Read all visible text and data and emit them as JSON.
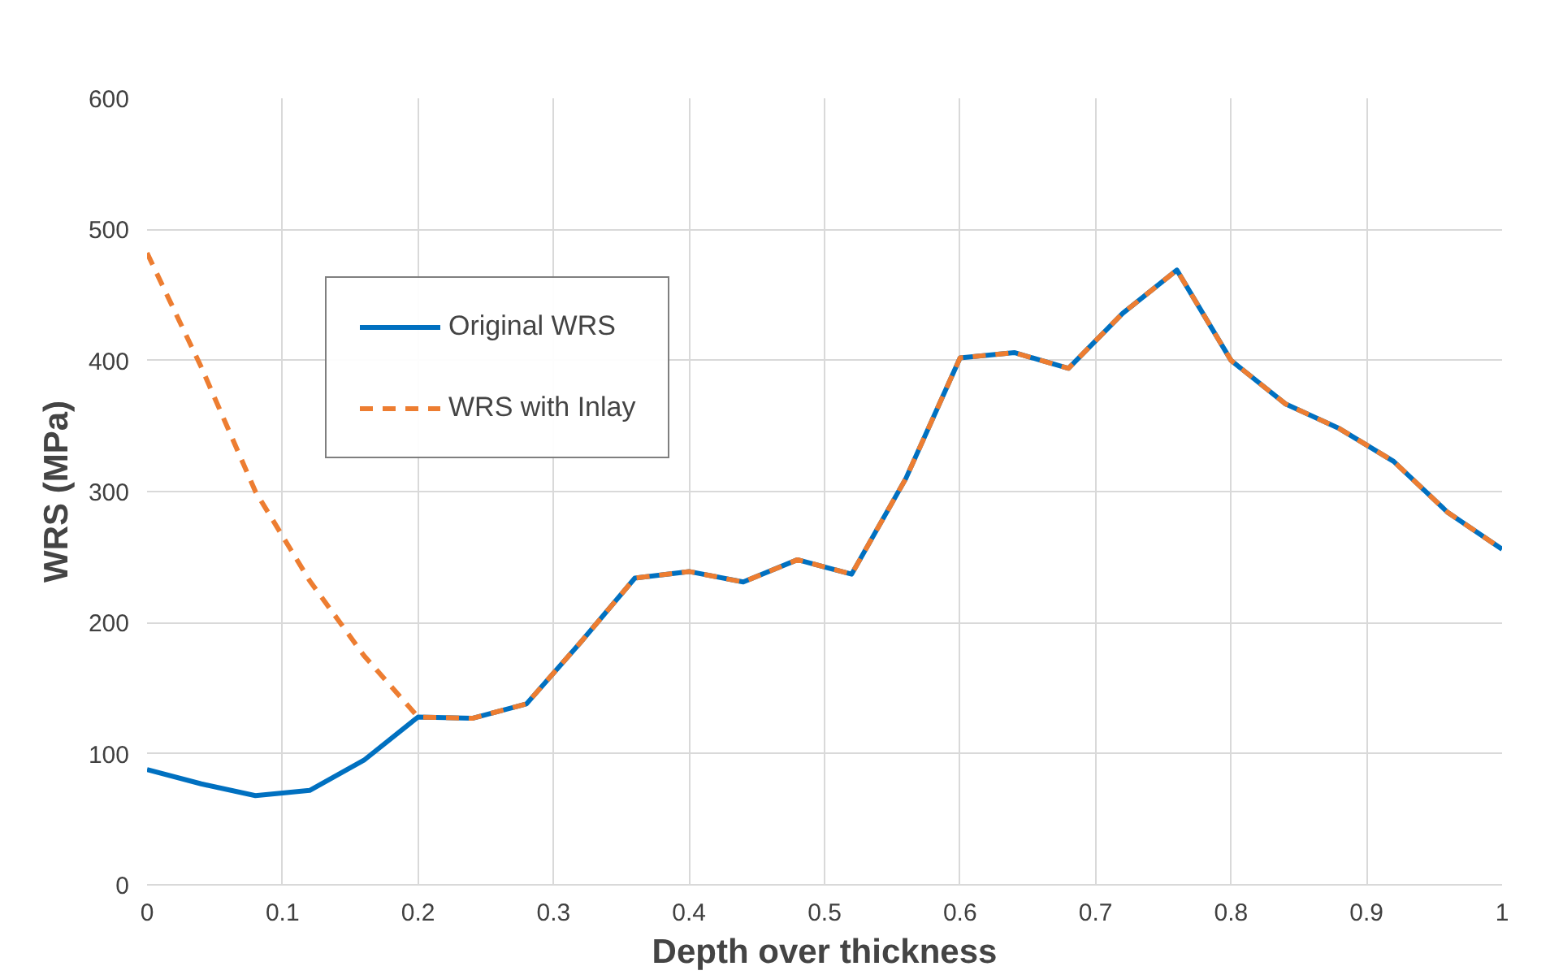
{
  "chart_data": {
    "type": "line",
    "xlabel": "Depth over thickness",
    "ylabel": "WRS (MPa)",
    "x": [
      0,
      0.04,
      0.08,
      0.12,
      0.16,
      0.2,
      0.24,
      0.28,
      0.32,
      0.36,
      0.4,
      0.44,
      0.48,
      0.52,
      0.56,
      0.6,
      0.64,
      0.68,
      0.72,
      0.76,
      0.8,
      0.84,
      0.88,
      0.92,
      0.96,
      1
    ],
    "series": [
      {
        "name": "Original WRS",
        "color": "#0070c0",
        "line_style": "solid",
        "values": [
          88,
          77,
          68,
          72,
          95,
          128,
          127,
          138,
          185,
          234,
          239,
          231,
          248,
          237,
          310,
          402,
          406,
          394,
          436,
          469,
          400,
          367,
          348,
          323,
          284,
          256
        ]
      },
      {
        "name": "WRS with Inlay",
        "color": "#ed7d31",
        "line_style": "dashed",
        "values": [
          482,
          395,
          300,
          232,
          175,
          128,
          127,
          138,
          185,
          234,
          239,
          231,
          248,
          237,
          310,
          402,
          406,
          394,
          436,
          469,
          400,
          367,
          348,
          323,
          284,
          256
        ]
      }
    ],
    "xlim": [
      0,
      1
    ],
    "xticks": [
      0,
      0.1,
      0.2,
      0.3,
      0.4,
      0.5,
      0.6,
      0.7,
      0.8,
      0.9,
      1
    ],
    "ylim": [
      0,
      600
    ],
    "yticks": [
      0,
      100,
      200,
      300,
      400,
      500,
      600
    ],
    "grid": true,
    "legend": "top left",
    "marker": "none"
  }
}
